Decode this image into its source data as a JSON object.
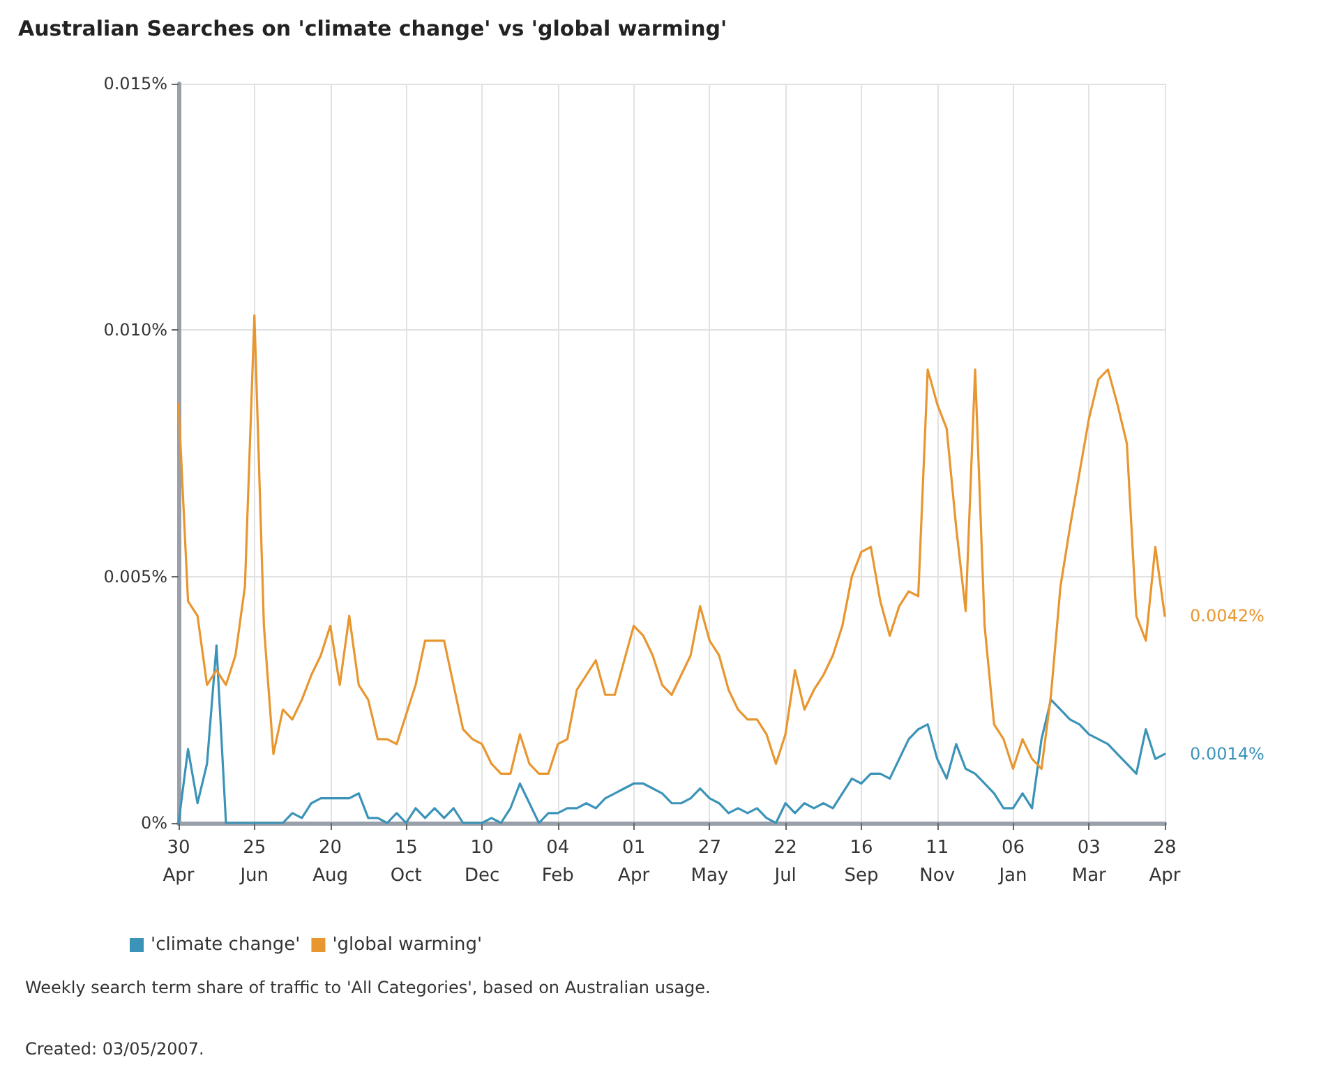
{
  "chart_data": {
    "type": "line",
    "title": "Australian Searches on 'climate change' vs 'global warming'",
    "x": [
      "2005-04-30",
      "2005-05-07",
      "2005-05-14",
      "2005-05-21",
      "2005-05-28",
      "2005-06-04",
      "2005-06-11",
      "2005-06-18",
      "2005-06-25",
      "2005-07-02",
      "2005-07-09",
      "2005-07-16",
      "2005-07-23",
      "2005-07-30",
      "2005-08-06",
      "2005-08-13",
      "2005-08-20",
      "2005-08-27",
      "2005-09-03",
      "2005-09-10",
      "2005-09-17",
      "2005-09-24",
      "2005-10-01",
      "2005-10-08",
      "2005-10-15",
      "2005-10-22",
      "2005-10-29",
      "2005-11-05",
      "2005-11-12",
      "2005-11-19",
      "2005-11-26",
      "2005-12-03",
      "2005-12-10",
      "2005-12-17",
      "2005-12-24",
      "2005-12-31",
      "2006-01-07",
      "2006-01-14",
      "2006-01-21",
      "2006-01-28",
      "2006-02-04",
      "2006-02-11",
      "2006-02-18",
      "2006-02-25",
      "2006-03-04",
      "2006-03-11",
      "2006-03-18",
      "2006-03-25",
      "2006-04-01",
      "2006-04-08",
      "2006-04-15",
      "2006-04-22",
      "2006-04-29",
      "2006-05-06",
      "2006-05-13",
      "2006-05-20",
      "2006-05-27",
      "2006-06-03",
      "2006-06-10",
      "2006-06-17",
      "2006-06-24",
      "2006-07-01",
      "2006-07-08",
      "2006-07-15",
      "2006-07-22",
      "2006-07-29",
      "2006-08-05",
      "2006-08-12",
      "2006-08-19",
      "2006-08-26",
      "2006-09-02",
      "2006-09-09",
      "2006-09-16",
      "2006-09-23",
      "2006-09-30",
      "2006-10-07",
      "2006-10-14",
      "2006-10-21",
      "2006-10-28",
      "2006-11-04",
      "2006-11-11",
      "2006-11-18",
      "2006-11-25",
      "2006-12-02",
      "2006-12-09",
      "2006-12-16",
      "2006-12-23",
      "2006-12-30",
      "2007-01-06",
      "2007-01-13",
      "2007-01-20",
      "2007-01-27",
      "2007-02-03",
      "2007-02-10",
      "2007-02-17",
      "2007-02-24",
      "2007-03-03",
      "2007-03-10",
      "2007-03-17",
      "2007-03-24",
      "2007-03-31",
      "2007-04-07",
      "2007-04-14",
      "2007-04-21",
      "2007-04-28"
    ],
    "series": [
      {
        "name": "'climate change'",
        "color": "#3b93b8",
        "values": [
          0,
          0.0015,
          0.0004,
          0.0012,
          0.0036,
          0,
          0,
          0,
          0,
          0,
          0,
          0,
          0.0002,
          0.0001,
          0.0004,
          0.0005,
          0.0005,
          0.0005,
          0.0005,
          0.0006,
          0.0001,
          0.0001,
          0,
          0.0002,
          0,
          0.0003,
          0.0001,
          0.0003,
          0.0001,
          0.0003,
          0,
          0,
          0,
          0.0001,
          0,
          0.0003,
          0.0008,
          0.0004,
          0,
          0.0002,
          0.0002,
          0.0003,
          0.0003,
          0.0004,
          0.0003,
          0.0005,
          0.0006,
          0.0007,
          0.0008,
          0.0008,
          0.0007,
          0.0006,
          0.0004,
          0.0004,
          0.0005,
          0.0007,
          0.0005,
          0.0004,
          0.0002,
          0.0003,
          0.0002,
          0.0003,
          0.0001,
          0,
          0.0004,
          0.0002,
          0.0004,
          0.0003,
          0.0004,
          0.0003,
          0.0006,
          0.0009,
          0.0008,
          0.001,
          0.001,
          0.0009,
          0.0013,
          0.0017,
          0.0019,
          0.002,
          0.0013,
          0.0009,
          0.0016,
          0.0011,
          0.001,
          0.0008,
          0.0006,
          0.0003,
          0.0003,
          0.0006,
          0.0003,
          0.0017,
          0.0025,
          0.0023,
          0.0021,
          0.002,
          0.0018,
          0.0017,
          0.0016,
          0.0014,
          0.0012,
          0.001,
          0.0019,
          0.0013,
          0.0014
        ]
      },
      {
        "name": "'global warming'",
        "color": "#e8962f",
        "values": [
          0.0085,
          0.0045,
          0.0042,
          0.0028,
          0.0031,
          0.0028,
          0.0034,
          0.0048,
          0.0103,
          0.004,
          0.0014,
          0.0023,
          0.0021,
          0.0025,
          0.003,
          0.0034,
          0.004,
          0.0028,
          0.0042,
          0.0028,
          0.0025,
          0.0017,
          0.0017,
          0.0016,
          0.0022,
          0.0028,
          0.0037,
          0.0037,
          0.0037,
          0.0028,
          0.0019,
          0.0017,
          0.0016,
          0.0012,
          0.001,
          0.001,
          0.0018,
          0.0012,
          0.001,
          0.001,
          0.0016,
          0.0017,
          0.0027,
          0.003,
          0.0033,
          0.0026,
          0.0026,
          0.0033,
          0.004,
          0.0038,
          0.0034,
          0.0028,
          0.0026,
          0.003,
          0.0034,
          0.0044,
          0.0037,
          0.0034,
          0.0027,
          0.0023,
          0.0021,
          0.0021,
          0.0018,
          0.0012,
          0.0018,
          0.0031,
          0.0023,
          0.0027,
          0.003,
          0.0034,
          0.004,
          0.005,
          0.0055,
          0.0056,
          0.0045,
          0.0038,
          0.0044,
          0.0047,
          0.0046,
          0.0092,
          0.0085,
          0.008,
          0.006,
          0.0043,
          0.0092,
          0.004,
          0.002,
          0.0017,
          0.0011,
          0.0017,
          0.0013,
          0.0011,
          0.0026,
          0.0048,
          0.006,
          0.0071,
          0.0082,
          0.009,
          0.0092,
          0.0085,
          0.0077,
          0.0042,
          0.0037,
          0.0056,
          0.0042
        ]
      }
    ],
    "xlim": [
      "2005-04-30",
      "2007-04-28"
    ],
    "xticks": [
      {
        "value": "2005-04-30",
        "label": "30\nApr"
      },
      {
        "value": "2005-06-25",
        "label": "25\nJun"
      },
      {
        "value": "2005-08-20",
        "label": "20\nAug"
      },
      {
        "value": "2005-10-15",
        "label": "15\nOct"
      },
      {
        "value": "2005-12-10",
        "label": "10\nDec"
      },
      {
        "value": "2006-02-04",
        "label": "04\nFeb"
      },
      {
        "value": "2006-04-01",
        "label": "01\nApr"
      },
      {
        "value": "2006-05-27",
        "label": "27\nMay"
      },
      {
        "value": "2006-07-22",
        "label": "22\nJul"
      },
      {
        "value": "2006-09-16",
        "label": "16\nSep"
      },
      {
        "value": "2006-11-11",
        "label": "11\nNov"
      },
      {
        "value": "2007-01-06",
        "label": "06\nJan"
      },
      {
        "value": "2007-03-03",
        "label": "03\nMar"
      },
      {
        "value": "2007-04-28",
        "label": "28\nApr"
      }
    ],
    "ylim": [
      0,
      0.015
    ],
    "yticks": [
      {
        "value": 0,
        "label": "0%"
      },
      {
        "value": 0.005,
        "label": "0.005%"
      },
      {
        "value": 0.01,
        "label": "0.010%"
      },
      {
        "value": 0.015,
        "label": "0.015%"
      }
    ],
    "grid": true,
    "legend": "bottom left",
    "marker": "none",
    "line_style": "solid",
    "annotations": [
      {
        "text": "0.0042%",
        "x": "2007-04-28",
        "y": 0.0042
      },
      {
        "text": "0.0014%",
        "x": "2007-04-28",
        "y": 0.0014
      },
      "Weekly search term share of traffic to 'All Categories', based on Australian usage.",
      "Created: 03/05/2007."
    ]
  }
}
